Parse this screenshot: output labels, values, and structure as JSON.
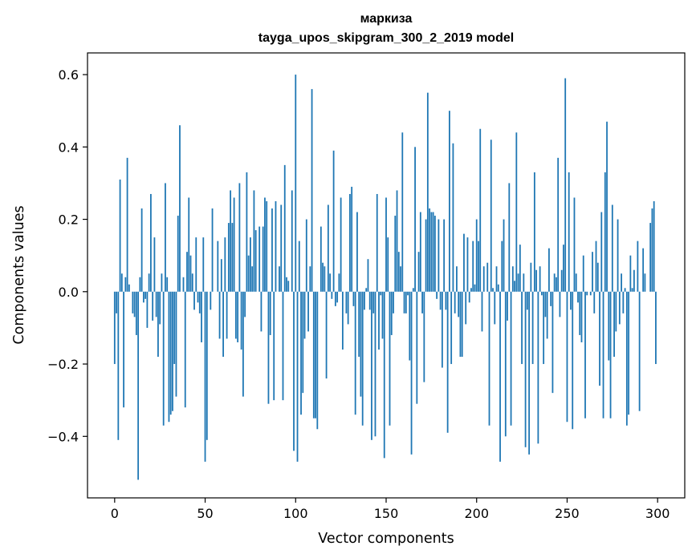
{
  "chart_data": {
    "type": "bar",
    "title": "маркиза",
    "subtitle": "tayga_upos_skipgram_300_2_2019 model",
    "xlabel": "Vector components",
    "ylabel": "Components values",
    "xlim": [
      -15,
      315
    ],
    "ylim": [
      -0.57,
      0.66
    ],
    "xticks": [
      0,
      50,
      100,
      150,
      200,
      250,
      300
    ],
    "xtick_labels": [
      "0",
      "50",
      "100",
      "150",
      "200",
      "250",
      "300"
    ],
    "yticks": [
      -0.4,
      -0.2,
      0.0,
      0.2,
      0.4,
      0.6
    ],
    "ytick_labels": [
      "−0.4",
      "−0.2",
      "0.0",
      "0.2",
      "0.4",
      "0.6"
    ],
    "bar_color": "#1f77b4",
    "grid": false,
    "legend": "none",
    "values": [
      -0.2,
      -0.06,
      -0.41,
      0.31,
      0.05,
      -0.32,
      0.04,
      0.37,
      0.02,
      0.0,
      -0.06,
      -0.07,
      -0.12,
      -0.52,
      0.04,
      0.23,
      -0.03,
      -0.02,
      -0.1,
      0.05,
      0.27,
      -0.08,
      0.15,
      -0.07,
      -0.18,
      -0.09,
      0.05,
      -0.37,
      0.3,
      0.04,
      -0.36,
      -0.34,
      -0.33,
      -0.2,
      -0.29,
      0.21,
      0.46,
      0.0,
      0.04,
      -0.32,
      0.11,
      0.26,
      0.1,
      0.05,
      -0.05,
      0.15,
      -0.03,
      -0.06,
      -0.14,
      0.15,
      -0.47,
      -0.41,
      0.0,
      -0.05,
      0.23,
      0.0,
      0.0,
      0.14,
      -0.13,
      0.09,
      -0.18,
      0.15,
      -0.13,
      0.19,
      0.28,
      0.19,
      0.26,
      -0.13,
      -0.14,
      0.3,
      -0.16,
      -0.29,
      -0.07,
      0.33,
      0.1,
      0.15,
      0.07,
      0.28,
      0.17,
      0.0,
      0.18,
      -0.11,
      0.18,
      0.26,
      0.25,
      -0.31,
      -0.12,
      0.23,
      -0.3,
      0.25,
      0.0,
      0.07,
      0.24,
      -0.3,
      0.35,
      0.04,
      0.03,
      0.0,
      0.28,
      -0.44,
      0.6,
      -0.47,
      0.14,
      -0.34,
      -0.28,
      -0.13,
      0.2,
      -0.11,
      0.07,
      0.56,
      -0.35,
      -0.35,
      -0.38,
      0.0,
      0.18,
      0.08,
      0.07,
      -0.24,
      0.24,
      0.05,
      -0.02,
      0.39,
      -0.04,
      -0.03,
      0.05,
      0.26,
      -0.16,
      0.0,
      -0.06,
      -0.09,
      0.27,
      0.29,
      -0.04,
      -0.34,
      0.22,
      -0.18,
      -0.29,
      -0.37,
      -0.05,
      0.01,
      0.09,
      -0.05,
      -0.41,
      -0.06,
      -0.4,
      0.27,
      -0.16,
      -0.01,
      -0.13,
      -0.46,
      0.26,
      0.15,
      -0.37,
      -0.12,
      -0.06,
      0.21,
      0.28,
      0.11,
      0.07,
      0.44,
      -0.06,
      -0.06,
      -0.01,
      -0.19,
      -0.45,
      0.01,
      0.4,
      -0.31,
      0.11,
      0.22,
      -0.06,
      -0.25,
      0.2,
      0.55,
      0.23,
      0.22,
      0.22,
      0.21,
      -0.02,
      0.2,
      -0.05,
      -0.21,
      0.2,
      -0.05,
      -0.39,
      0.5,
      -0.2,
      0.41,
      -0.06,
      0.07,
      -0.07,
      -0.18,
      -0.18,
      0.16,
      -0.09,
      0.15,
      -0.03,
      0.01,
      0.14,
      0.02,
      0.2,
      0.14,
      0.45,
      -0.11,
      0.07,
      0.0,
      0.08,
      -0.37,
      0.42,
      0.01,
      -0.09,
      0.07,
      0.02,
      -0.47,
      0.14,
      0.2,
      -0.4,
      -0.08,
      0.3,
      -0.37,
      0.07,
      0.03,
      0.44,
      0.05,
      0.13,
      -0.2,
      0.05,
      -0.43,
      -0.05,
      -0.45,
      0.08,
      -0.2,
      0.33,
      0.06,
      -0.42,
      0.07,
      -0.01,
      -0.2,
      -0.07,
      -0.13,
      0.12,
      -0.04,
      -0.28,
      0.05,
      0.04,
      0.37,
      -0.07,
      0.06,
      0.13,
      0.59,
      -0.36,
      0.33,
      -0.05,
      -0.38,
      0.26,
      0.05,
      -0.03,
      -0.12,
      -0.14,
      0.1,
      -0.35,
      -0.01,
      0.0,
      -0.01,
      0.11,
      -0.06,
      0.14,
      0.08,
      -0.26,
      0.22,
      -0.35,
      0.33,
      0.47,
      -0.19,
      -0.35,
      0.24,
      -0.18,
      -0.11,
      0.2,
      -0.09,
      0.05,
      -0.06,
      0.01,
      -0.37,
      -0.34,
      0.1,
      0.01,
      0.06,
      0.0,
      0.14,
      -0.33,
      0.0,
      0.12,
      0.05,
      0.0,
      0.0,
      0.19,
      0.23,
      0.25,
      -0.2,
      0.0
    ]
  }
}
